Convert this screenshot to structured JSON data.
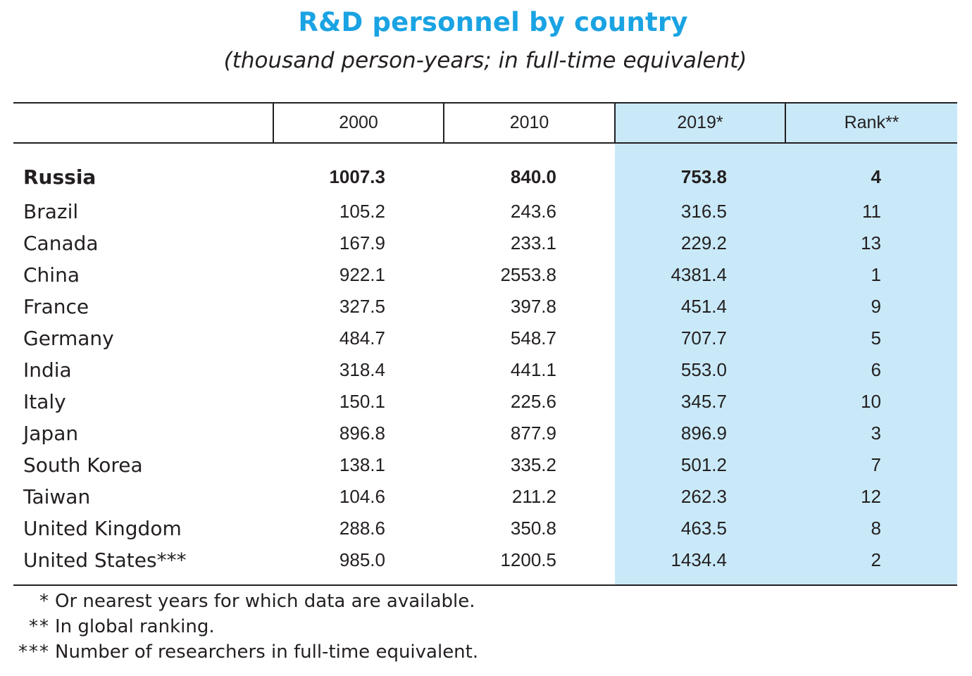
{
  "title": "R&D personnel by country",
  "subtitle": "(thousand person-years; in full-time equivalent)",
  "columns": [
    "",
    "2000",
    "2010",
    "2019*",
    "Rank**"
  ],
  "highlight_color": "#c9e9f8",
  "title_color": "#1aa3e3",
  "rows": [
    {
      "country": "Russia",
      "y2000": "1007.3",
      "y2010": "840.0",
      "y2019": "753.8",
      "rank": "4",
      "bold": true
    },
    {
      "country": "Brazil",
      "y2000": "105.2",
      "y2010": "243.6",
      "y2019": "316.5",
      "rank": "11"
    },
    {
      "country": "Canada",
      "y2000": "167.9",
      "y2010": "233.1",
      "y2019": "229.2",
      "rank": "13"
    },
    {
      "country": "China",
      "y2000": "922.1",
      "y2010": "2553.8",
      "y2019": "4381.4",
      "rank": "1"
    },
    {
      "country": "France",
      "y2000": "327.5",
      "y2010": "397.8",
      "y2019": "451.4",
      "rank": "9"
    },
    {
      "country": "Germany",
      "y2000": "484.7",
      "y2010": "548.7",
      "y2019": "707.7",
      "rank": "5"
    },
    {
      "country": "India",
      "y2000": "318.4",
      "y2010": "441.1",
      "y2019": "553.0",
      "rank": "6"
    },
    {
      "country": "Italy",
      "y2000": "150.1",
      "y2010": "225.6",
      "y2019": "345.7",
      "rank": "10"
    },
    {
      "country": "Japan",
      "y2000": "896.8",
      "y2010": "877.9",
      "y2019": "896.9",
      "rank": "3"
    },
    {
      "country": "South Korea",
      "y2000": "138.1",
      "y2010": "335.2",
      "y2019": "501.2",
      "rank": "7"
    },
    {
      "country": "Taiwan",
      "y2000": "104.6",
      "y2010": "211.2",
      "y2019": "262.3",
      "rank": "12"
    },
    {
      "country": "United Kingdom",
      "y2000": "288.6",
      "y2010": "350.8",
      "y2019": "463.5",
      "rank": "8"
    },
    {
      "country": "United States***",
      "y2000": "985.0",
      "y2010": "1200.5",
      "y2019": "1434.4",
      "rank": "2"
    }
  ],
  "notes": [
    {
      "mark": "*",
      "text": "Or nearest years for which data are available."
    },
    {
      "mark": "**",
      "text": "In global ranking."
    },
    {
      "mark": "***",
      "text": "Number of researchers in full-time equivalent."
    }
  ]
}
